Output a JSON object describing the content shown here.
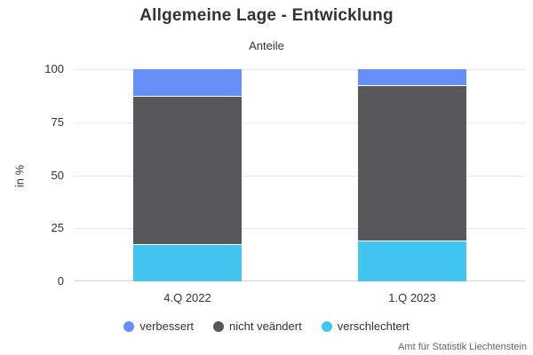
{
  "chart": {
    "title": "Allgemeine Lage - Entwicklung",
    "subtitle": "Anteile",
    "source": "Amt für Statistik Liechtenstein"
  },
  "chart_data": {
    "type": "bar",
    "stacked": true,
    "title": "Allgemeine Lage - Entwicklung",
    "subtitle": "Anteile",
    "categories": [
      "4.Q 2022",
      "1.Q 2023"
    ],
    "series": [
      {
        "name": "verbessert",
        "color": "#6690f8",
        "values": [
          13,
          8
        ]
      },
      {
        "name": "nicht veändert",
        "color": "#58585a",
        "values": [
          70,
          73
        ]
      },
      {
        "name": "verschlechtert",
        "color": "#42c6f0",
        "values": [
          17,
          19
        ]
      }
    ],
    "xlabel": "",
    "ylabel": "in %",
    "ylim": [
      0,
      100
    ],
    "yticks": [
      0,
      25,
      50,
      75,
      100
    ],
    "grid": true,
    "legend_position": "bottom",
    "colors": {
      "gridline": "#e6e6e6",
      "axisline": "#ccd6eb",
      "text": "#333333",
      "source_text": "#666666",
      "background": "#ffffff"
    }
  }
}
